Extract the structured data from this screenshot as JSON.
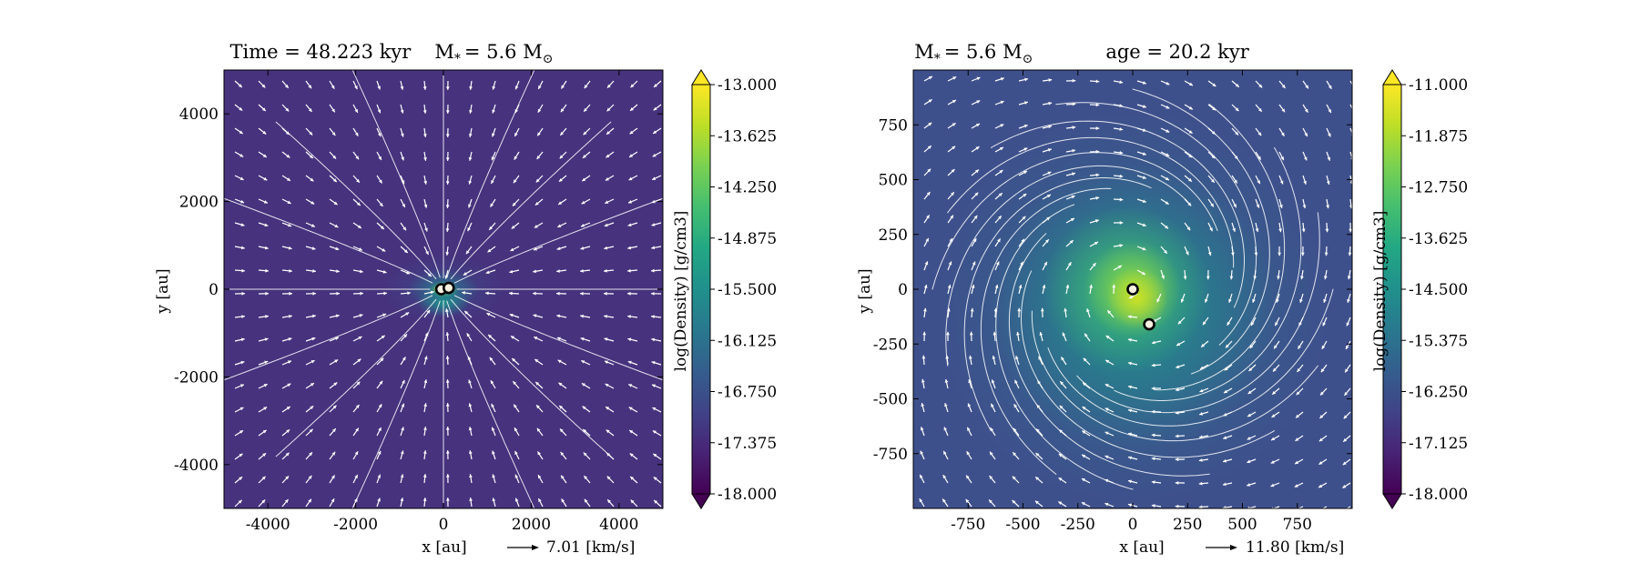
{
  "chart_data": [
    {
      "type": "heatmap",
      "title": "Time = 48.223 kyr    M$_*$ = 5.6 M$_\\odot$",
      "title_parts": {
        "time": "Time = 48.223 kyr",
        "mass_prefix": "M",
        "mass_value": "= 5.6 M"
      },
      "xlabel": "x [au]",
      "ylabel": "y [au]",
      "xlim": [
        -5000,
        5000
      ],
      "ylim": [
        -5000,
        5000
      ],
      "xticks": [
        -4000,
        -2000,
        0,
        2000,
        4000
      ],
      "xtick_labels": [
        "-4000",
        "-2000",
        "0",
        "2000",
        "4000"
      ],
      "yticks": [
        -4000,
        -2000,
        0,
        2000,
        4000
      ],
      "ytick_labels": [
        "-4000",
        "-2000",
        "0",
        "2000",
        "4000"
      ],
      "colorbar": {
        "label": "log(Density) [g/cm3]",
        "range": [
          -18.0,
          -13.0
        ],
        "extend": "both",
        "ticks": [
          "-13.000",
          "-13.625",
          "-14.250",
          "-14.875",
          "-15.500",
          "-16.125",
          "-16.750",
          "-17.375",
          "-18.000"
        ]
      },
      "vector_key": {
        "label": "7.01 [km/s]",
        "value": 7.01
      },
      "sink_particles": [
        {
          "x": -50,
          "y": 0
        },
        {
          "x": 120,
          "y": 30
        }
      ],
      "overlays": [
        "velocity quiver arrows (white)",
        "velocity streamlines (white)"
      ]
    },
    {
      "type": "heatmap",
      "title": "M$_*$ = 5.6 M$_\\odot$        age = 20.2 kyr",
      "title_parts": {
        "mass_prefix": "M",
        "mass_value": "= 5.6 M",
        "age": "age = 20.2 kyr"
      },
      "xlabel": "x [au]",
      "ylabel": "y [au]",
      "xlim": [
        -1000,
        1000
      ],
      "ylim": [
        -1000,
        1000
      ],
      "xticks": [
        -750,
        -500,
        -250,
        0,
        250,
        500,
        750
      ],
      "xtick_labels": [
        "-750",
        "-500",
        "-250",
        "0",
        "250",
        "500",
        "750"
      ],
      "yticks": [
        -750,
        -500,
        -250,
        0,
        250,
        500,
        750
      ],
      "ytick_labels": [
        "-750",
        "-500",
        "-250",
        "0",
        "250",
        "500",
        "750"
      ],
      "colorbar": {
        "label": "log(Density) [g/cm3]",
        "range": [
          -18.0,
          -11.0
        ],
        "extend": "both",
        "ticks": [
          "-11.000",
          "-11.875",
          "-12.750",
          "-13.625",
          "-14.500",
          "-15.375",
          "-16.250",
          "-17.125",
          "-18.000"
        ]
      },
      "vector_key": {
        "label": "11.80 [km/s]",
        "value": 11.8
      },
      "sink_particles": [
        {
          "x": 0,
          "y": 0
        },
        {
          "x": 75,
          "y": -160
        }
      ],
      "overlays": [
        "velocity quiver arrows (white)",
        "velocity streamlines (white)"
      ]
    }
  ],
  "colors": {
    "colormap": "viridis",
    "arrow": "#ffffff",
    "sink_ring": "#000000",
    "sink_fill": "#f5f0e0"
  }
}
